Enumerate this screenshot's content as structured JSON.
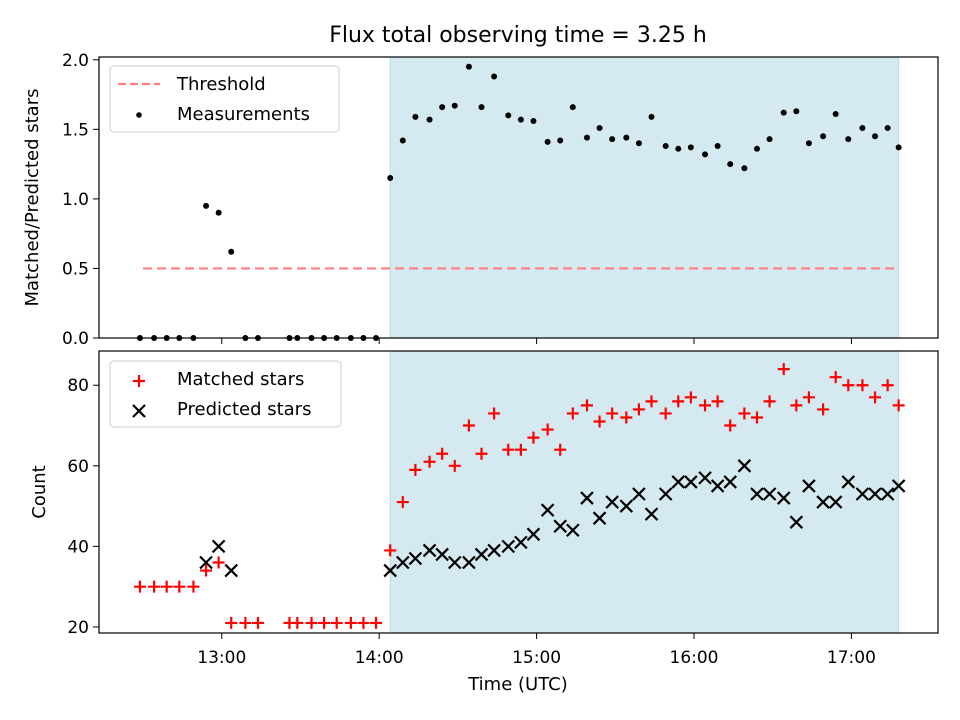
{
  "chart_data": {
    "type": "scatter",
    "title": "Flux total observing time = 3.25 h",
    "xlabel": "Time (UTC)",
    "x_ticks": [
      "13:00",
      "14:00",
      "15:00",
      "16:00",
      "17:00"
    ],
    "x_tick_hours": [
      13,
      14,
      15,
      16,
      17
    ],
    "xlim_hours": [
      12.22,
      17.55
    ],
    "shaded_span_hours": [
      14.07,
      17.3
    ],
    "shade_color": "#d4eaf0",
    "top_panel": {
      "ylabel": "Matched/Predicted stars",
      "ylim": [
        0,
        2.02
      ],
      "y_ticks": [
        "0.0",
        "0.5",
        "1.0",
        "1.5",
        "2.0"
      ],
      "threshold": {
        "name": "Threshold",
        "y": 0.5,
        "x_range": [
          12.5,
          17.3
        ],
        "color": "#ff7f7f"
      },
      "measurements": {
        "name": "Measurements",
        "color": "#000000",
        "x": [
          12.48,
          12.57,
          12.65,
          12.73,
          12.82,
          12.9,
          12.98,
          13.06,
          13.15,
          13.23,
          13.43,
          13.48,
          13.57,
          13.65,
          13.73,
          13.82,
          13.9,
          13.98,
          14.07,
          14.15,
          14.23,
          14.32,
          14.4,
          14.48,
          14.57,
          14.65,
          14.73,
          14.82,
          14.9,
          14.98,
          15.07,
          15.15,
          15.23,
          15.32,
          15.4,
          15.48,
          15.57,
          15.65,
          15.73,
          15.82,
          15.9,
          15.98,
          16.07,
          16.15,
          16.23,
          16.32,
          16.4,
          16.48,
          16.57,
          16.65,
          16.73,
          16.82,
          16.9,
          16.98,
          17.07,
          17.15,
          17.23,
          17.3
        ],
        "y": [
          0,
          0,
          0,
          0,
          0,
          0.95,
          0.9,
          0.62,
          0,
          0,
          0,
          0,
          0,
          0,
          0,
          0,
          0,
          0,
          1.15,
          1.42,
          1.59,
          1.57,
          1.66,
          1.67,
          1.95,
          1.66,
          1.88,
          1.6,
          1.57,
          1.56,
          1.41,
          1.42,
          1.66,
          1.44,
          1.51,
          1.43,
          1.44,
          1.4,
          1.59,
          1.38,
          1.36,
          1.37,
          1.32,
          1.38,
          1.25,
          1.22,
          1.36,
          1.43,
          1.62,
          1.63,
          1.4,
          1.45,
          1.61,
          1.43,
          1.51,
          1.45,
          1.51,
          1.37
        ]
      },
      "legend": [
        "Threshold",
        "Measurements"
      ]
    },
    "bottom_panel": {
      "ylabel": "Count",
      "ylim": [
        18.5,
        88.5
      ],
      "y_ticks": [
        "20",
        "40",
        "60",
        "80"
      ],
      "y_tick_values": [
        20,
        40,
        60,
        80
      ],
      "matched": {
        "name": "Matched stars",
        "color": "#ff0000",
        "x": [
          12.48,
          12.57,
          12.65,
          12.73,
          12.82,
          12.9,
          12.98,
          13.06,
          13.15,
          13.23,
          13.43,
          13.48,
          13.57,
          13.65,
          13.73,
          13.82,
          13.9,
          13.98,
          14.07,
          14.15,
          14.23,
          14.32,
          14.4,
          14.48,
          14.57,
          14.65,
          14.73,
          14.82,
          14.9,
          14.98,
          15.07,
          15.15,
          15.23,
          15.32,
          15.4,
          15.48,
          15.57,
          15.65,
          15.73,
          15.82,
          15.9,
          15.98,
          16.07,
          16.15,
          16.23,
          16.32,
          16.4,
          16.48,
          16.57,
          16.65,
          16.73,
          16.82,
          16.9,
          16.98,
          17.07,
          17.15,
          17.23,
          17.3
        ],
        "y": [
          30,
          30,
          30,
          30,
          30,
          34,
          36,
          21,
          21,
          21,
          21,
          21,
          21,
          21,
          21,
          21,
          21,
          21,
          39,
          51,
          59,
          61,
          63,
          60,
          70,
          63,
          73,
          64,
          64,
          67,
          69,
          64,
          73,
          75,
          71,
          73,
          72,
          74,
          76,
          73,
          76,
          77,
          75,
          76,
          70,
          73,
          72,
          76,
          84,
          75,
          77,
          74,
          82,
          80,
          80,
          77,
          80,
          75
        ]
      },
      "predicted": {
        "name": "Predicted stars",
        "color": "#000000",
        "x": [
          12.9,
          12.98,
          13.06,
          14.07,
          14.15,
          14.23,
          14.32,
          14.4,
          14.48,
          14.57,
          14.65,
          14.73,
          14.82,
          14.9,
          14.98,
          15.07,
          15.15,
          15.23,
          15.32,
          15.4,
          15.48,
          15.57,
          15.65,
          15.73,
          15.82,
          15.9,
          15.98,
          16.07,
          16.15,
          16.23,
          16.32,
          16.4,
          16.48,
          16.57,
          16.65,
          16.73,
          16.82,
          16.9,
          16.98,
          17.07,
          17.15,
          17.23,
          17.3
        ],
        "y": [
          36,
          40,
          34,
          34,
          36,
          37,
          39,
          38,
          36,
          36,
          38,
          39,
          40,
          41,
          43,
          49,
          45,
          44,
          52,
          47,
          51,
          50,
          53,
          48,
          53,
          56,
          56,
          57,
          55,
          56,
          60,
          53,
          53,
          52,
          46,
          55,
          51,
          51,
          56,
          53,
          53,
          53,
          55
        ]
      },
      "legend": [
        "Matched stars",
        "Predicted stars"
      ]
    }
  }
}
